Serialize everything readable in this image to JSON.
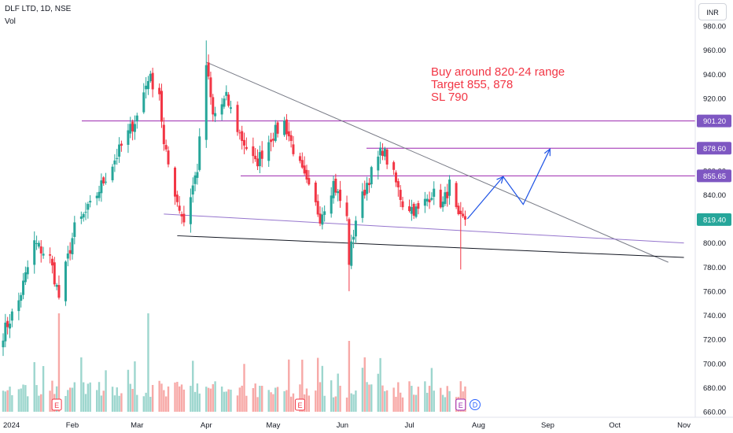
{
  "header": {
    "symbol_title": "DLF LTD, 1D, NSE",
    "volume_label": "Vol",
    "currency": "INR"
  },
  "annotation": {
    "lines": [
      "Buy around 820-24 range",
      "Target 855, 878",
      "SL 790"
    ],
    "color": "#f23645"
  },
  "colors": {
    "up": "#26a69a",
    "down": "#f23645",
    "level_line": "#9c27b0",
    "level_label_bg": "#7e57c2",
    "last_price_bg": "#26a69a",
    "trendline": "#131722",
    "arrow": "#1e53e5"
  },
  "chart_data": {
    "type": "candlestick",
    "y_axis": {
      "ticks": [
        "660.00",
        "680.00",
        "700.00",
        "720.00",
        "740.00",
        "760.00",
        "780.00",
        "800.00",
        "820.00",
        "840.00",
        "860.00",
        "880.00",
        "900.00",
        "920.00",
        "940.00",
        "960.00",
        "980.00"
      ],
      "range": [
        656,
        986
      ]
    },
    "x_axis": {
      "labels": [
        {
          "label": "2024",
          "date": "2024-01-01"
        },
        {
          "label": "Feb",
          "date": "2024-02-01"
        },
        {
          "label": "Mar",
          "date": "2024-03-01"
        },
        {
          "label": "Apr",
          "date": "2024-04-01"
        },
        {
          "label": "May",
          "date": "2024-05-01"
        },
        {
          "label": "Jun",
          "date": "2024-06-01"
        },
        {
          "label": "Jul",
          "date": "2024-07-01"
        },
        {
          "label": "Aug",
          "date": "2024-08-01"
        },
        {
          "label": "Sep",
          "date": "2024-09-01"
        },
        {
          "label": "Oct",
          "date": "2024-10-01"
        },
        {
          "label": "Nov",
          "date": "2024-11-01"
        }
      ]
    },
    "price_levels": [
      {
        "label": "901.20",
        "value": 901.2,
        "kind": "level"
      },
      {
        "label": "878.60",
        "value": 878.6,
        "kind": "level"
      },
      {
        "label": "855.65",
        "value": 855.65,
        "kind": "level"
      },
      {
        "label": "819.40",
        "value": 819.4,
        "kind": "last"
      }
    ],
    "anchors": [
      {
        "date": "2024-01-01",
        "price": 725
      },
      {
        "date": "2024-01-08",
        "price": 752
      },
      {
        "date": "2024-01-15",
        "price": 800
      },
      {
        "date": "2024-01-22",
        "price": 787
      },
      {
        "date": "2024-01-26",
        "price": 755
      },
      {
        "date": "2024-02-02",
        "price": 812
      },
      {
        "date": "2024-02-09",
        "price": 830
      },
      {
        "date": "2024-02-16",
        "price": 855
      },
      {
        "date": "2024-02-23",
        "price": 880
      },
      {
        "date": "2024-03-01",
        "price": 905
      },
      {
        "date": "2024-03-06",
        "price": 938
      },
      {
        "date": "2024-03-11",
        "price": 925
      },
      {
        "date": "2024-03-13",
        "price": 880
      },
      {
        "date": "2024-03-19",
        "price": 835
      },
      {
        "date": "2024-03-22",
        "price": 818
      },
      {
        "date": "2024-03-28",
        "price": 862
      },
      {
        "date": "2024-04-01",
        "price": 948
      },
      {
        "date": "2024-04-04",
        "price": 905
      },
      {
        "date": "2024-04-10",
        "price": 920
      },
      {
        "date": "2024-04-16",
        "price": 890
      },
      {
        "date": "2024-04-23",
        "price": 865
      },
      {
        "date": "2024-04-30",
        "price": 888
      },
      {
        "date": "2024-05-06",
        "price": 900
      },
      {
        "date": "2024-05-10",
        "price": 878
      },
      {
        "date": "2024-05-16",
        "price": 848
      },
      {
        "date": "2024-05-22",
        "price": 822
      },
      {
        "date": "2024-05-28",
        "price": 850
      },
      {
        "date": "2024-06-03",
        "price": 820
      },
      {
        "date": "2024-06-04",
        "price": 785
      },
      {
        "date": "2024-06-07",
        "price": 820
      },
      {
        "date": "2024-06-12",
        "price": 850
      },
      {
        "date": "2024-06-19",
        "price": 878
      },
      {
        "date": "2024-06-24",
        "price": 855
      },
      {
        "date": "2024-06-28",
        "price": 833
      },
      {
        "date": "2024-07-05",
        "price": 826
      },
      {
        "date": "2024-07-11",
        "price": 842
      },
      {
        "date": "2024-07-16",
        "price": 832
      },
      {
        "date": "2024-07-19",
        "price": 848
      },
      {
        "date": "2024-07-23",
        "price": 818
      },
      {
        "date": "2024-07-26",
        "price": 819.4
      }
    ],
    "trendlines": [
      {
        "name": "descending-resistance",
        "from": {
          "date": "2024-04-01",
          "price": 950
        },
        "to": {
          "date": "2024-10-25",
          "price": 784
        },
        "color": "#787b86"
      },
      {
        "name": "support",
        "from": {
          "date": "2024-03-19",
          "price": 806
        },
        "to": {
          "date": "2024-11-01",
          "price": 788
        },
        "color": "#131722"
      },
      {
        "name": "channel-lower",
        "from": {
          "date": "2024-03-13",
          "price": 824
        },
        "to": {
          "date": "2024-11-01",
          "price": 800
        },
        "color": "#9575cd"
      }
    ],
    "projection_path": [
      {
        "date": "2024-07-27",
        "price": 820
      },
      {
        "date": "2024-08-12",
        "price": 855
      },
      {
        "date": "2024-08-21",
        "price": 832
      },
      {
        "date": "2024-09-02",
        "price": 878
      }
    ],
    "earnings_markers": [
      {
        "date": "2024-01-25",
        "label": "E"
      },
      {
        "date": "2024-05-13",
        "label": "E"
      },
      {
        "date": "2024-07-24",
        "label": "E"
      }
    ],
    "dividend_markers": [
      {
        "date": "2024-07-29",
        "label": "D"
      }
    ]
  }
}
